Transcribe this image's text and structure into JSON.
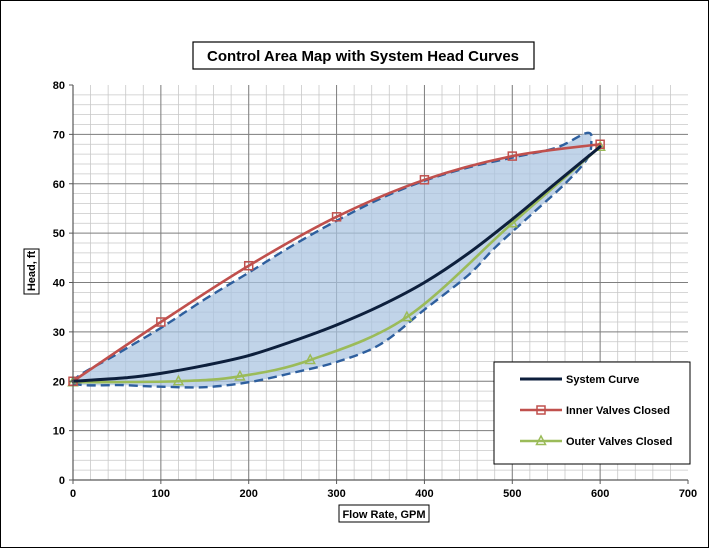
{
  "chart_data": {
    "type": "line",
    "title": "Control Area Map with System Head Curves",
    "xlabel": "Flow Rate, GPM",
    "ylabel": "Head, ft",
    "xlim": [
      0,
      700
    ],
    "ylim": [
      0,
      80
    ],
    "x_ticks": [
      "0",
      "100",
      "200",
      "300",
      "400",
      "500",
      "600",
      "700"
    ],
    "y_ticks": [
      "0",
      "10",
      "20",
      "30",
      "40",
      "50",
      "60",
      "70",
      "80"
    ],
    "x_minor_step": 20,
    "y_minor_step": 2,
    "grid": true,
    "legend_position": "bottom-right",
    "series": [
      {
        "name": "System Curve",
        "color": "#0d1f3c",
        "marker": "none",
        "x": [
          0,
          60,
          100,
          150,
          200,
          250,
          300,
          350,
          400,
          450,
          500,
          550,
          600
        ],
        "y": [
          20.0,
          20.7,
          21.6,
          23.2,
          25.2,
          28.1,
          31.4,
          35.3,
          40.0,
          45.9,
          52.8,
          60.2,
          67.5
        ]
      },
      {
        "name": "Inner Valves Closed",
        "color": "#c0504d",
        "marker": "square",
        "x": [
          0,
          100,
          200,
          300,
          400,
          500,
          600
        ],
        "y": [
          20.0,
          32.0,
          43.4,
          53.3,
          60.8,
          65.6,
          68.0
        ]
      },
      {
        "name": "Outer Valves Closed",
        "color": "#9bbb59",
        "marker": "triangle",
        "x": [
          0,
          120,
          190,
          270,
          380,
          500,
          600
        ],
        "y": [
          19.8,
          20.0,
          21.0,
          24.3,
          33.0,
          52.0,
          67.5
        ]
      }
    ],
    "control_area": {
      "fill": "#a9c4e0",
      "outline_color": "#2e5f9e",
      "boundary_x": [
        0,
        50,
        100,
        150,
        200,
        250,
        300,
        350,
        400,
        450,
        500,
        550,
        585,
        590,
        585,
        560,
        520,
        480,
        450,
        400,
        350,
        300,
        250,
        200,
        150,
        100,
        60,
        0
      ],
      "boundary_y": [
        19.8,
        25.5,
        30.8,
        36.6,
        42.0,
        47.5,
        52.5,
        57.0,
        60.6,
        63.3,
        65.3,
        67.3,
        70.3,
        68.5,
        65.0,
        60.0,
        53.5,
        47.0,
        41.5,
        34.5,
        27.5,
        23.9,
        21.7,
        19.8,
        18.8,
        18.9,
        19.2,
        19.8
      ]
    }
  }
}
